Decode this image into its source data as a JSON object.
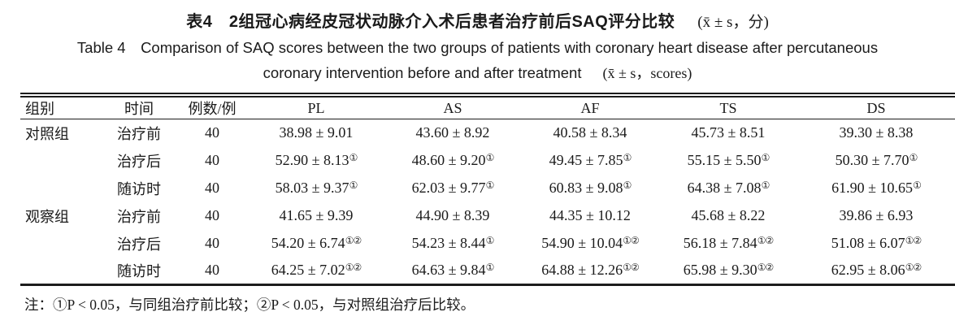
{
  "title": {
    "zh_main": "表4　2组冠心病经皮冠状动脉介入术后患者治疗前后SAQ评分比较",
    "zh_stat": "(x̄ ± s，分)",
    "en_line1": "Table 4　Comparison of SAQ scores between the two groups of patients with coronary heart disease after percutaneous",
    "en_line2_main": "coronary intervention before and after treatment",
    "en_line2_stat": "(x̄ ± s，scores)"
  },
  "table": {
    "headers": {
      "group": "组别",
      "time": "时间",
      "n": "例数/例",
      "pl": "PL",
      "as": "AS",
      "af": "AF",
      "ts": "TS",
      "ds": "DS"
    },
    "rows": [
      {
        "group": "对照组",
        "time": "治疗前",
        "n": "40",
        "cells": [
          {
            "v": "38.98 ± 9.01",
            "sup": ""
          },
          {
            "v": "43.60 ± 8.92",
            "sup": ""
          },
          {
            "v": "40.58 ± 8.34",
            "sup": ""
          },
          {
            "v": "45.73 ± 8.51",
            "sup": ""
          },
          {
            "v": "39.30 ± 8.38",
            "sup": ""
          }
        ]
      },
      {
        "group": "",
        "time": "治疗后",
        "n": "40",
        "cells": [
          {
            "v": "52.90 ± 8.13",
            "sup": "①"
          },
          {
            "v": "48.60 ± 9.20",
            "sup": "①"
          },
          {
            "v": "49.45 ± 7.85",
            "sup": "①"
          },
          {
            "v": "55.15 ± 5.50",
            "sup": "①"
          },
          {
            "v": "50.30 ± 7.70",
            "sup": "①"
          }
        ]
      },
      {
        "group": "",
        "time": "随访时",
        "n": "40",
        "cells": [
          {
            "v": "58.03 ± 9.37",
            "sup": "①"
          },
          {
            "v": "62.03 ± 9.77",
            "sup": "①"
          },
          {
            "v": "60.83 ± 9.08",
            "sup": "①"
          },
          {
            "v": "64.38 ± 7.08",
            "sup": "①"
          },
          {
            "v": "61.90 ± 10.65",
            "sup": "①"
          }
        ]
      },
      {
        "group": "观察组",
        "time": "治疗前",
        "n": "40",
        "cells": [
          {
            "v": "41.65 ± 9.39",
            "sup": ""
          },
          {
            "v": "44.90 ± 8.39",
            "sup": ""
          },
          {
            "v": "44.35 ± 10.12",
            "sup": ""
          },
          {
            "v": "45.68 ± 8.22",
            "sup": ""
          },
          {
            "v": "39.86 ± 6.93",
            "sup": ""
          }
        ]
      },
      {
        "group": "",
        "time": "治疗后",
        "n": "40",
        "cells": [
          {
            "v": "54.20 ± 6.74",
            "sup": "①②"
          },
          {
            "v": "54.23 ± 8.44",
            "sup": "①"
          },
          {
            "v": "54.90 ± 10.04",
            "sup": "①②"
          },
          {
            "v": "56.18 ± 7.84",
            "sup": "①②"
          },
          {
            "v": "51.08 ± 6.07",
            "sup": "①②"
          }
        ]
      },
      {
        "group": "",
        "time": "随访时",
        "n": "40",
        "cells": [
          {
            "v": "64.25 ± 7.02",
            "sup": "①②"
          },
          {
            "v": "64.63 ± 9.84",
            "sup": "①"
          },
          {
            "v": "64.88 ± 12.26",
            "sup": "①②"
          },
          {
            "v": "65.98 ± 9.30",
            "sup": "①②"
          },
          {
            "v": "62.95 ± 8.06",
            "sup": "①②"
          }
        ]
      }
    ]
  },
  "footnote": "注：①P < 0.05，与同组治疗前比较；②P < 0.05，与对照组治疗后比较。"
}
